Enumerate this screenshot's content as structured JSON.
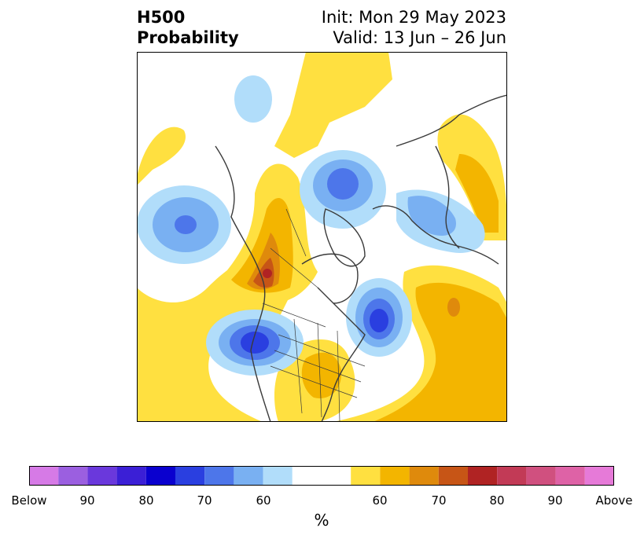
{
  "header": {
    "title_line1": "H500",
    "title_line2": "Probability",
    "init": "Init: Mon 29 May 2023",
    "valid": "Valid: 13 Jun – 26 Jun"
  },
  "colors": {
    "below_100": "#d67ae6",
    "below_95": "#9b5fe0",
    "below_90": "#6a38dc",
    "below_85": "#3b1fd6",
    "below_80": "#0a00cf",
    "below_75": "#2a3fe0",
    "below_70": "#4d76ea",
    "below_65": "#79b0f2",
    "below_60": "#b1ddfa",
    "neutral": "#ffffff",
    "above_60": "#ffe040",
    "above_65": "#f3b500",
    "above_70": "#df8a0c",
    "above_75": "#c75516",
    "above_80": "#b02323",
    "above_85": "#c23a56",
    "above_90": "#d0507f",
    "above_95": "#de62a6",
    "above_100": "#e67ad8",
    "coastline": "#3a3a3a"
  },
  "colorbar": {
    "unit_label": "%",
    "tick_labels": [
      "Below",
      "90",
      "80",
      "70",
      "60",
      "60",
      "70",
      "80",
      "90",
      "Above"
    ]
  }
}
